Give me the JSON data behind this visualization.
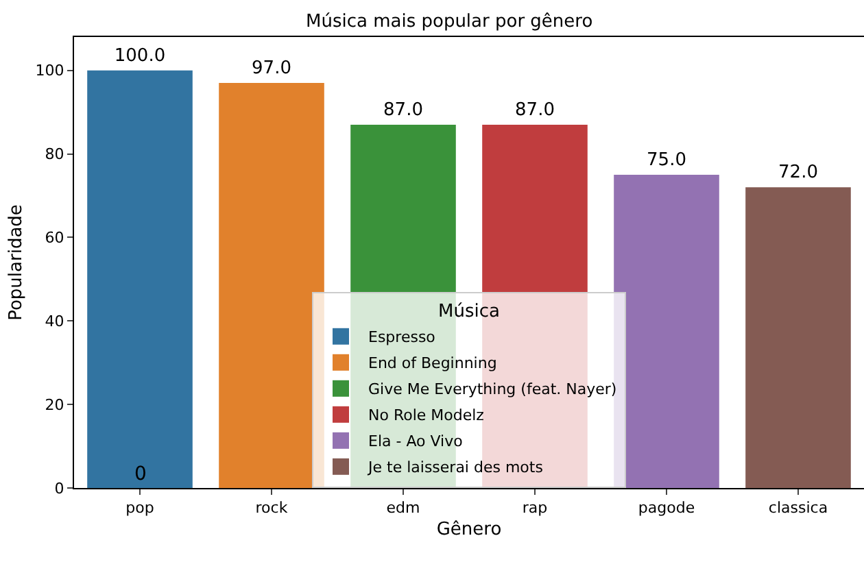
{
  "chart_data": {
    "type": "bar",
    "title": "Música mais popular por gênero",
    "xlabel": "Gênero",
    "ylabel": "Popularidade",
    "legend_title": "Música",
    "categories": [
      "pop",
      "rock",
      "edm",
      "rap",
      "pagode",
      "classica"
    ],
    "series": [
      {
        "name": "Espresso",
        "color": "#3274a1",
        "values": [
          100,
          null,
          null,
          null,
          null,
          null
        ],
        "value_labels": [
          "100.0",
          null,
          null,
          null,
          null,
          null
        ]
      },
      {
        "name": "End of Beginning",
        "color": "#e1812c",
        "values": [
          null,
          97,
          null,
          null,
          null,
          null
        ],
        "value_labels": [
          null,
          "97.0",
          null,
          null,
          null,
          null
        ]
      },
      {
        "name": "Give Me Everything (feat. Nayer)",
        "color": "#3a923a",
        "values": [
          null,
          null,
          87,
          null,
          null,
          null
        ],
        "value_labels": [
          null,
          null,
          "87.0",
          null,
          null,
          null
        ]
      },
      {
        "name": "No Role Modelz",
        "color": "#c03d3e",
        "values": [
          null,
          null,
          null,
          87,
          null,
          null
        ],
        "value_labels": [
          null,
          null,
          null,
          "87.0",
          null,
          null
        ]
      },
      {
        "name": "Ela - Ao Vivo",
        "color": "#9372b2",
        "values": [
          null,
          null,
          null,
          null,
          75,
          null
        ],
        "value_labels": [
          null,
          null,
          null,
          null,
          "75.0",
          null
        ]
      },
      {
        "name": "Je te laisserai des mots",
        "color": "#845b53",
        "values": [
          null,
          null,
          null,
          null,
          null,
          72
        ],
        "value_labels": [
          null,
          null,
          null,
          null,
          null,
          "72.0"
        ]
      }
    ],
    "annotations": [
      {
        "text": "0",
        "x": "pop",
        "y": 0
      }
    ],
    "ylim": [
      0,
      108
    ],
    "yticks": [
      0,
      20,
      40,
      60,
      80,
      100
    ],
    "grid": false,
    "legend": "bottom"
  }
}
